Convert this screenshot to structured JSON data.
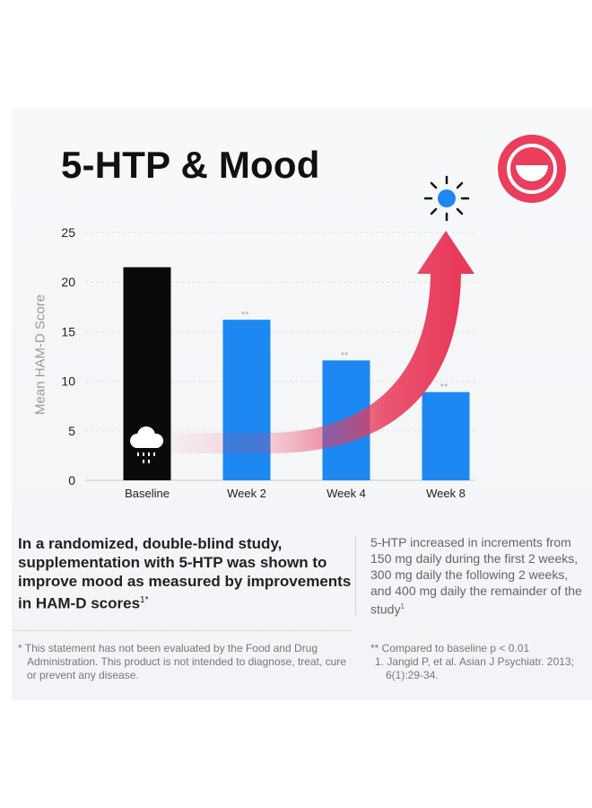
{
  "title": "5-HTP & Mood",
  "colors": {
    "baseline_bar": "#0a0a0a",
    "week_bar": "#1e88f2",
    "arrow": "#e83a5a",
    "smiley_bg": "#ea3e5c"
  },
  "icons": {
    "badge": "smiley-face-icon",
    "cloud": "rain-cloud-icon",
    "sun": "sun-icon",
    "arrow": "upward-arrow-icon"
  },
  "chart_data": {
    "type": "bar",
    "title": "5-HTP & Mood",
    "ylabel": "Mean HAM-D Score",
    "xlabel": "",
    "ylim": [
      0,
      25
    ],
    "yticks": [
      "0",
      "5",
      "10",
      "15",
      "20",
      "25"
    ],
    "categories": [
      "Baseline",
      "Week 2",
      "Week 4",
      "Week 8"
    ],
    "values": [
      21.5,
      16.2,
      12.1,
      8.9
    ],
    "annotations": [
      "",
      "**",
      "**",
      "**"
    ],
    "grid": true
  },
  "claim": {
    "text": "In a randomized, double-blind study, supplementation with 5-HTP was shown to improve mood as measured by improvements in HAM-D scores",
    "sup": "1*"
  },
  "dosing": {
    "text": "5-HTP increased in increments from 150 mg daily during the first 2 weeks, 300 mg daily the following 2 weeks, and 400 mg daily the remainder of the study",
    "sup": "1"
  },
  "disclaimer": "* This statement has not been evaluated by the Food and Drug Administration. This product is not intended to diagnose, treat, cure or prevent any disease.",
  "footnote": "** Compared to baseline p < 0.01",
  "reference": "1. Jangid P, et al. Asian J Psychiatr. 2013; 6(1):29-34."
}
